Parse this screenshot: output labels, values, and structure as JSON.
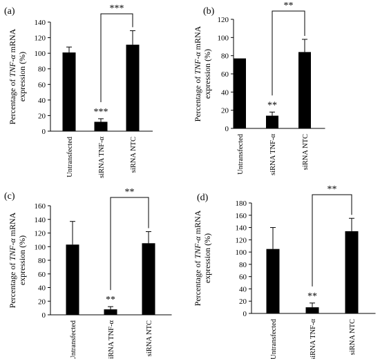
{
  "chart_data": [
    {
      "type": "bar",
      "panel_label": "(a)",
      "categories": [
        "Untransfected",
        "siRNA TNF-α",
        "siRNA NTC"
      ],
      "values": [
        101,
        12,
        111
      ],
      "errors": [
        7,
        4,
        18
      ],
      "ylim": [
        0,
        140
      ],
      "yticks": [
        0,
        20,
        40,
        60,
        80,
        100,
        120,
        140
      ],
      "ylabel": {
        "pre": "Percentage of ",
        "italic": "TNF-α",
        "post": " mRNA",
        "line2": "expression (%)"
      },
      "bar_annotations": [
        {
          "index": 1,
          "text": "***"
        }
      ],
      "bracket": {
        "from": 1,
        "to": 2,
        "text": "***"
      },
      "color": "#000000"
    },
    {
      "type": "bar",
      "panel_label": "(b)",
      "categories": [
        "Untransfected",
        "siRNA TNF-α",
        "siRNA NTC"
      ],
      "values": [
        77,
        14,
        84
      ],
      "errors": [
        0,
        4,
        14
      ],
      "ylim": [
        0,
        120
      ],
      "yticks": [
        0,
        20,
        40,
        60,
        80,
        100,
        120
      ],
      "ylabel": {
        "pre": "Percentage of ",
        "italic": "TNF-α",
        "post": " mRNA",
        "line2": "expression (%)"
      },
      "bar_annotations": [
        {
          "index": 1,
          "text": "**"
        }
      ],
      "bracket": {
        "from": 1,
        "to": 2,
        "text": "**"
      },
      "color": "#000000"
    },
    {
      "type": "bar",
      "panel_label": "(c)",
      "categories": [
        "Untransfected",
        "siRNA TNF-α",
        "siRNA NTC"
      ],
      "values": [
        103,
        8,
        105
      ],
      "errors": [
        34,
        4,
        17
      ],
      "ylim": [
        0,
        160
      ],
      "yticks": [
        0,
        20,
        40,
        60,
        80,
        100,
        120,
        140,
        160
      ],
      "ylabel": {
        "pre": "Percentage of ",
        "italic": "TNF-α",
        "post": " mRNA",
        "line2": "expression (%)"
      },
      "bar_annotations": [
        {
          "index": 1,
          "text": "**"
        }
      ],
      "bracket": {
        "from": 1,
        "to": 2,
        "text": "**"
      },
      "color": "#000000"
    },
    {
      "type": "bar",
      "panel_label": "(d)",
      "categories": [
        "Untransfected",
        "siRNA TNF-α",
        "siRNA NTC"
      ],
      "values": [
        105,
        10,
        134
      ],
      "errors": [
        35,
        7,
        21
      ],
      "ylim": [
        0,
        180
      ],
      "yticks": [
        0,
        20,
        40,
        60,
        80,
        100,
        120,
        140,
        160,
        180
      ],
      "ylabel": {
        "pre": "Percentage of ",
        "italic": "TNF-α",
        "post": " mRNA",
        "line2": "expression (%)"
      },
      "bar_annotations": [
        {
          "index": 1,
          "text": "**"
        }
      ],
      "bracket": {
        "from": 1,
        "to": 2,
        "text": "**"
      },
      "color": "#000000"
    }
  ]
}
